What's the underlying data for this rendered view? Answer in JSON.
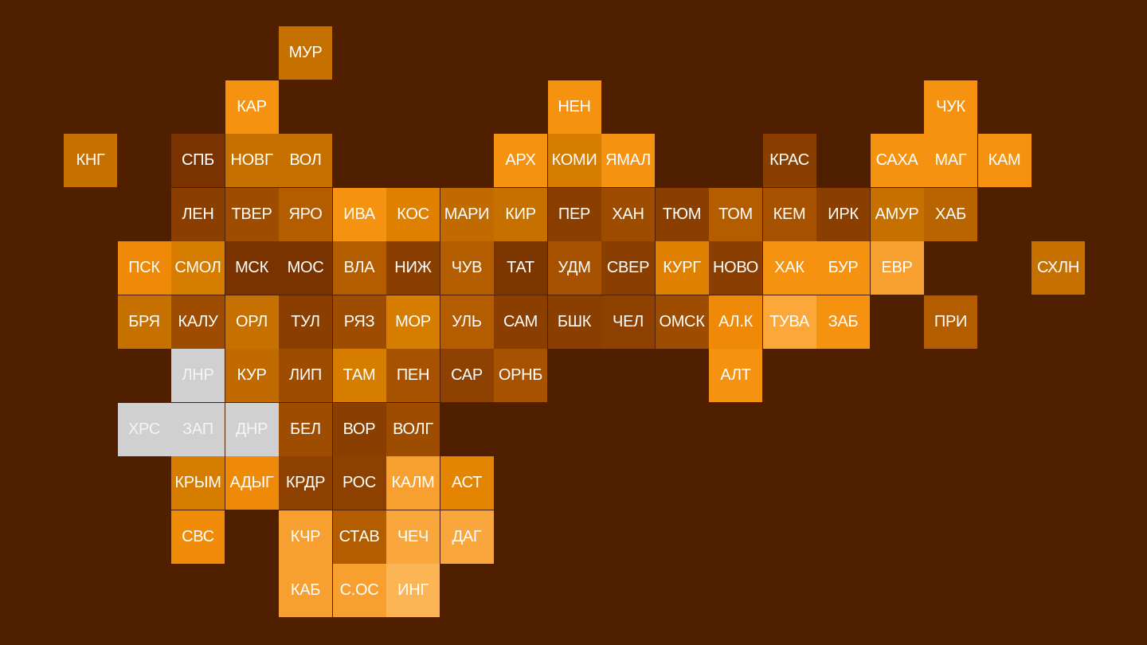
{
  "background": "#4f1f00",
  "regions": [
    {
      "label": "МУР",
      "color": "#c67000"
    },
    {
      "label": "КАР",
      "color": "#f59310"
    },
    {
      "label": "НЕН",
      "color": "#f59310"
    },
    {
      "label": "ЧУК",
      "color": "#f59310"
    },
    {
      "label": "КНГ",
      "color": "#c67000"
    },
    {
      "label": "СПБ",
      "color": "#7a3300"
    },
    {
      "label": "НОВГ",
      "color": "#c67000"
    },
    {
      "label": "ВОЛ",
      "color": "#c67000"
    },
    {
      "label": "АРХ",
      "color": "#f59310"
    },
    {
      "label": "КОМИ",
      "color": "#d67d00"
    },
    {
      "label": "ЯМАЛ",
      "color": "#f59310"
    },
    {
      "label": "КРАС",
      "color": "#8a3e00"
    },
    {
      "label": "САХА",
      "color": "#f59310"
    },
    {
      "label": "МАГ",
      "color": "#f59310"
    },
    {
      "label": "КАМ",
      "color": "#f59310"
    },
    {
      "label": "ЛЕН",
      "color": "#8a3e00"
    },
    {
      "label": "ТВЕР",
      "color": "#9e4c00"
    },
    {
      "label": "ЯРО",
      "color": "#b35c00"
    },
    {
      "label": "ИВА",
      "color": "#f59310"
    },
    {
      "label": "КОС",
      "color": "#df8000"
    },
    {
      "label": "МАРИ",
      "color": "#c06a00"
    },
    {
      "label": "КИР",
      "color": "#c67000"
    },
    {
      "label": "ПЕР",
      "color": "#8a3e00"
    },
    {
      "label": "ХАН",
      "color": "#9e4c00"
    },
    {
      "label": "ТЮМ",
      "color": "#8a3e00"
    },
    {
      "label": "ТОМ",
      "color": "#b35c00"
    },
    {
      "label": "КЕМ",
      "color": "#a65200"
    },
    {
      "label": "ИРК",
      "color": "#8a3e00"
    },
    {
      "label": "АМУР",
      "color": "#c67000"
    },
    {
      "label": "ХАБ",
      "color": "#b86400"
    },
    {
      "label": "ПСК",
      "color": "#ee8a08"
    },
    {
      "label": "СМОЛ",
      "color": "#d67d00"
    },
    {
      "label": "МСК",
      "color": "#7a3300"
    },
    {
      "label": "МОС",
      "color": "#7a3300"
    },
    {
      "label": "ВЛА",
      "color": "#b35c00"
    },
    {
      "label": "НИЖ",
      "color": "#8a3e00"
    },
    {
      "label": "ЧУВ",
      "color": "#b35c00"
    },
    {
      "label": "ТАТ",
      "color": "#7e3600"
    },
    {
      "label": "УДМ",
      "color": "#a65200"
    },
    {
      "label": "СВЕР",
      "color": "#8a3e00"
    },
    {
      "label": "КУРГ",
      "color": "#df8000"
    },
    {
      "label": "НОВО",
      "color": "#8a3e00"
    },
    {
      "label": "ХАК",
      "color": "#f59310"
    },
    {
      "label": "БУР",
      "color": "#f59310"
    },
    {
      "label": "ЕВР",
      "color": "#f7a030"
    },
    {
      "label": "СХЛН",
      "color": "#c67000"
    },
    {
      "label": "БРЯ",
      "color": "#c67000"
    },
    {
      "label": "КАЛУ",
      "color": "#9e4c00"
    },
    {
      "label": "ОРЛ",
      "color": "#c67000"
    },
    {
      "label": "ТУЛ",
      "color": "#8a3e00"
    },
    {
      "label": "РЯЗ",
      "color": "#9e4c00"
    },
    {
      "label": "МОР",
      "color": "#d67d00"
    },
    {
      "label": "УЛЬ",
      "color": "#b35c00"
    },
    {
      "label": "САМ",
      "color": "#8a3e00"
    },
    {
      "label": "БШК",
      "color": "#8a3e00"
    },
    {
      "label": "ЧЕЛ",
      "color": "#8e4000"
    },
    {
      "label": "ОМСК",
      "color": "#9e4c00"
    },
    {
      "label": "АЛ.К",
      "color": "#ee8a08"
    },
    {
      "label": "ТУВА",
      "color": "#fba73a"
    },
    {
      "label": "ЗАБ",
      "color": "#f59310"
    },
    {
      "label": "ПРИ",
      "color": "#b35c00"
    },
    {
      "label": "ЛНР",
      "color": "#d0d0d0"
    },
    {
      "label": "КУР",
      "color": "#c06a00"
    },
    {
      "label": "ЛИП",
      "color": "#9e4c00"
    },
    {
      "label": "ТАМ",
      "color": "#d67d00"
    },
    {
      "label": "ПЕН",
      "color": "#a65200"
    },
    {
      "label": "САР",
      "color": "#8e4000"
    },
    {
      "label": "ОРНБ",
      "color": "#a65200"
    },
    {
      "label": "АЛТ",
      "color": "#f59310"
    },
    {
      "label": "ХРС",
      "color": "#d0d0d0"
    },
    {
      "label": "ЗАП",
      "color": "#d0d0d0"
    },
    {
      "label": "ДНР",
      "color": "#d0d0d0"
    },
    {
      "label": "БЕЛ",
      "color": "#9e4c00"
    },
    {
      "label": "ВОР",
      "color": "#8a3e00"
    },
    {
      "label": "ВОЛГ",
      "color": "#9e4c00"
    },
    {
      "label": "КРЫМ",
      "color": "#d67d00"
    },
    {
      "label": "АДЫГ",
      "color": "#ee8a08"
    },
    {
      "label": "КРДР",
      "color": "#8e4000"
    },
    {
      "label": "РОС",
      "color": "#8e4000"
    },
    {
      "label": "КАЛМ",
      "color": "#f7a030"
    },
    {
      "label": "АСТ",
      "color": "#e58400"
    },
    {
      "label": "СВС",
      "color": "#f08c08"
    },
    {
      "label": "КЧР",
      "color": "#f7a030"
    },
    {
      "label": "СТАВ",
      "color": "#b35c00"
    },
    {
      "label": "ЧЕЧ",
      "color": "#f9a73c"
    },
    {
      "label": "ДАГ",
      "color": "#f9a73c"
    },
    {
      "label": "КАБ",
      "color": "#f7a030"
    },
    {
      "label": "С.ОС",
      "color": "#f7a030"
    },
    {
      "label": "ИНГ",
      "color": "#fbb555"
    }
  ]
}
